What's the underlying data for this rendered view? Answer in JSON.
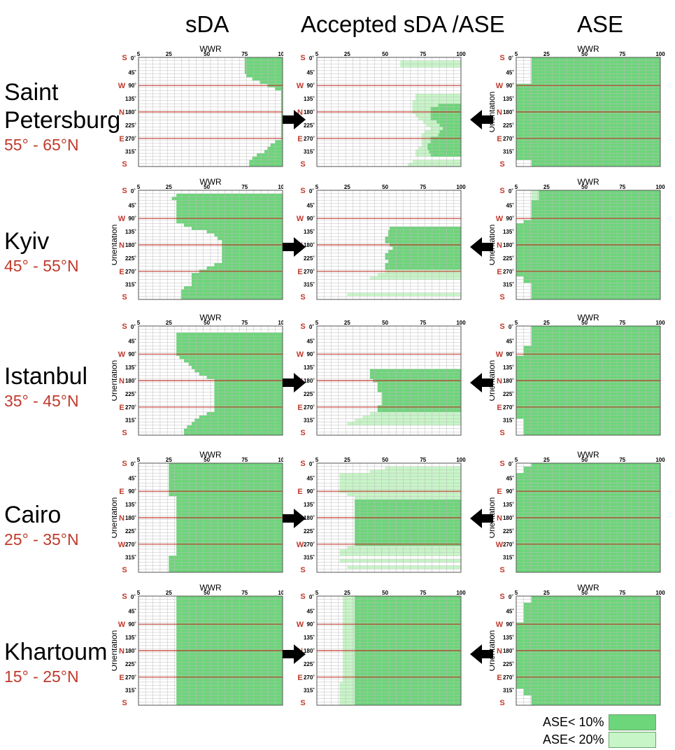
{
  "headers": [
    "sDA",
    "Accepted sDA /ASE",
    "ASE"
  ],
  "colors": {
    "ase10": "#6dd57a",
    "ase20": "#c7f5c7",
    "red": "#c0392b",
    "grid": "#bdbdbd"
  },
  "legend": [
    {
      "label": "ASE< 10%",
      "color": "#6dd57a"
    },
    {
      "label": "ASE< 20%",
      "color": "#c7f5c7"
    }
  ],
  "chart_data": {
    "type": "heatmap",
    "x_label": "WWR",
    "y_label": "Orientation",
    "x_tick_labels": [
      "5",
      "25",
      "50",
      "75",
      "100"
    ],
    "y_tick_labels": [
      "0˚",
      "45˚",
      "90˚",
      "135˚",
      "180˚",
      "225˚",
      "270˚",
      "315˚"
    ],
    "rows": [
      {
        "city": "Saint Petersburg",
        "lat": "55° - 65°N",
        "dir_labels": [
          "S",
          "W",
          "N",
          "E",
          "S"
        ],
        "panels": [
          {
            "show_wwr": true,
            "show_orientation": false,
            "boundary": [
              75,
              75,
              75,
              75,
              75,
              76,
              80,
              85,
              90,
              95,
              99,
              99,
              99,
              99,
              99,
              99,
              99,
              99,
              99,
              99,
              99,
              99,
              99,
              99,
              99,
              95,
              92,
              90,
              88,
              83,
              80,
              78,
              78
            ],
            "boundary2": null
          },
          {
            "show_wwr": false,
            "show_orientation": false,
            "boundary": [
              100,
              100,
              100,
              100,
              100,
              100,
              100,
              100,
              100,
              100,
              100,
              100,
              100,
              100,
              85,
              80,
              80,
              80,
              80,
              84,
              86,
              88,
              86,
              85,
              80,
              80,
              78,
              78,
              79,
              80,
              100,
              100,
              100
            ],
            "boundary2": [
              100,
              60,
              60,
              100,
              100,
              100,
              100,
              100,
              100,
              100,
              100,
              70,
              70,
              68,
              68,
              68,
              68,
              70,
              72,
              75,
              77,
              80,
              76,
              74,
              74,
              74,
              74,
              72,
              70,
              70,
              100,
              68,
              65
            ]
          },
          {
            "show_wwr": true,
            "show_orientation": true,
            "boundary": [
              15,
              15,
              15,
              15,
              15,
              15,
              15,
              15,
              5,
              5,
              5,
              5,
              5,
              5,
              5,
              5,
              5,
              5,
              5,
              5,
              5,
              5,
              5,
              5,
              5,
              5,
              5,
              5,
              5,
              5,
              5,
              15,
              15
            ],
            "boundary2": [
              80,
              75,
              72,
              65,
              50,
              45,
              40,
              35,
              25,
              25,
              25,
              25,
              20,
              5,
              5,
              5,
              5,
              5,
              5,
              5,
              5,
              5,
              5,
              5,
              5,
              25,
              35,
              45,
              55,
              65,
              75,
              78,
              80
            ]
          }
        ]
      },
      {
        "city": "Kyiv",
        "lat": "45° - 55°N",
        "dir_labels": [
          "S",
          "W",
          "N",
          "E",
          "S"
        ],
        "panels": [
          {
            "show_wwr": true,
            "show_orientation": true,
            "boundary": [
              100,
              30,
              27,
              30,
              30,
              30,
              30,
              30,
              30,
              30,
              35,
              40,
              50,
              55,
              57,
              60,
              60,
              60,
              60,
              60,
              60,
              60,
              55,
              50,
              45,
              40,
              40,
              40,
              40,
              35,
              33,
              33,
              33
            ],
            "boundary2": null
          },
          {
            "show_wwr": false,
            "show_orientation": false,
            "boundary": [
              100,
              100,
              100,
              100,
              100,
              100,
              100,
              100,
              100,
              100,
              100,
              53,
              52,
              52,
              50,
              50,
              53,
              55,
              52,
              50,
              50,
              52,
              50,
              50,
              100,
              100,
              100,
              100,
              100,
              100,
              100,
              100,
              100
            ],
            "boundary2": [
              100,
              100,
              100,
              100,
              100,
              100,
              100,
              100,
              100,
              100,
              100,
              58,
              55,
              55,
              55,
              55,
              55,
              56,
              55,
              55,
              55,
              55,
              55,
              55,
              50,
              45,
              40,
              100,
              100,
              100,
              100,
              25,
              100
            ]
          },
          {
            "show_wwr": true,
            "show_orientation": true,
            "boundary": [
              20,
              20,
              20,
              15,
              15,
              15,
              15,
              15,
              15,
              10,
              5,
              5,
              5,
              5,
              5,
              5,
              5,
              5,
              5,
              5,
              5,
              5,
              5,
              5,
              5,
              5,
              10,
              10,
              15,
              15,
              15,
              15,
              15
            ],
            "boundary2": [
              15,
              15,
              15,
              15,
              15,
              15,
              15,
              15,
              15,
              10,
              5,
              5,
              5,
              5,
              5,
              5,
              5,
              5,
              5,
              5,
              5,
              5,
              5,
              5,
              5,
              5,
              10,
              10,
              15,
              15,
              15,
              15,
              15
            ]
          }
        ]
      },
      {
        "city": "Istanbul",
        "lat": "35° - 45°N",
        "dir_labels": [
          "S",
          "W",
          "N",
          "E",
          "S"
        ],
        "panels": [
          {
            "show_wwr": true,
            "show_orientation": true,
            "boundary": [
              100,
              100,
              30,
              30,
              30,
              30,
              30,
              30,
              30,
              32,
              35,
              38,
              40,
              42,
              45,
              50,
              55,
              55,
              55,
              55,
              55,
              55,
              55,
              55,
              55,
              55,
              50,
              45,
              42,
              40,
              37,
              35,
              35
            ],
            "boundary2": null
          },
          {
            "show_wwr": false,
            "show_orientation": false,
            "boundary": [
              100,
              100,
              100,
              100,
              100,
              100,
              100,
              100,
              100,
              100,
              100,
              100,
              100,
              40,
              40,
              40,
              42,
              45,
              45,
              45,
              48,
              48,
              48,
              48,
              45,
              45,
              100,
              100,
              100,
              100,
              100,
              100,
              100
            ],
            "boundary2": [
              100,
              100,
              100,
              100,
              100,
              100,
              100,
              100,
              100,
              100,
              100,
              100,
              100,
              55,
              50,
              50,
              50,
              48,
              48,
              48,
              52,
              52,
              52,
              50,
              50,
              45,
              40,
              35,
              30,
              25,
              100,
              100,
              100
            ]
          },
          {
            "show_wwr": true,
            "show_orientation": true,
            "boundary": [
              15,
              15,
              15,
              15,
              15,
              15,
              10,
              10,
              10,
              5,
              5,
              5,
              5,
              5,
              5,
              5,
              5,
              5,
              5,
              5,
              5,
              5,
              5,
              5,
              5,
              5,
              5,
              5,
              10,
              10,
              10,
              10,
              10
            ],
            "boundary2": [
              15,
              15,
              15,
              15,
              15,
              15,
              15,
              15,
              15,
              10,
              5,
              5,
              5,
              5,
              5,
              5,
              5,
              5,
              5,
              5,
              5,
              5,
              5,
              5,
              5,
              5,
              5,
              5,
              10,
              15,
              15,
              15,
              15
            ]
          }
        ]
      },
      {
        "city": "Cairo",
        "lat": "25° - 35°N",
        "dir_labels": [
          "S",
          "E",
          "N",
          "W",
          "S"
        ],
        "panels": [
          {
            "show_wwr": true,
            "show_orientation": true,
            "boundary": [
              25,
              25,
              25,
              25,
              25,
              25,
              25,
              25,
              25,
              25,
              30,
              30,
              30,
              30,
              30,
              30,
              30,
              30,
              30,
              30,
              30,
              30,
              30,
              30,
              30,
              30,
              30,
              30,
              25,
              25,
              25,
              25,
              25
            ],
            "boundary2": null
          },
          {
            "show_wwr": false,
            "show_orientation": false,
            "boundary": [
              100,
              100,
              100,
              100,
              100,
              100,
              100,
              100,
              100,
              100,
              100,
              30,
              30,
              30,
              30,
              30,
              30,
              30,
              30,
              30,
              30,
              30,
              30,
              30,
              30,
              100,
              100,
              100,
              100,
              100,
              100,
              100,
              100
            ],
            "boundary2": [
              100,
              50,
              40,
              20,
              20,
              20,
              20,
              20,
              20,
              25,
              30,
              30,
              30,
              30,
              30,
              30,
              30,
              30,
              30,
              30,
              30,
              30,
              30,
              30,
              30,
              25,
              20,
              20,
              100,
              20,
              100,
              25,
              100
            ]
          },
          {
            "show_wwr": true,
            "show_orientation": true,
            "boundary": [
              15,
              10,
              10,
              5,
              5,
              5,
              5,
              5,
              5,
              5,
              5,
              5,
              5,
              5,
              5,
              5,
              5,
              5,
              5,
              5,
              5,
              5,
              5,
              5,
              5,
              5,
              5,
              5,
              5,
              5,
              5,
              5,
              5
            ],
            "boundary2": [
              20,
              20,
              20,
              10,
              10,
              5,
              5,
              5,
              5,
              5,
              5,
              5,
              5,
              5,
              5,
              5,
              5,
              5,
              5,
              5,
              5,
              5,
              5,
              5,
              5,
              5,
              5,
              5,
              5,
              5,
              5,
              5,
              5
            ]
          }
        ]
      },
      {
        "city": "Khartoum",
        "lat": "15° - 25°N",
        "dir_labels": [
          "S",
          "W",
          "N",
          "E",
          "S"
        ],
        "panels": [
          {
            "show_wwr": true,
            "show_orientation": true,
            "boundary": [
              30,
              30,
              30,
              30,
              30,
              30,
              30,
              30,
              30,
              30,
              30,
              30,
              30,
              30,
              30,
              30,
              30,
              30,
              30,
              30,
              30,
              30,
              30,
              30,
              30,
              30,
              30,
              30,
              30,
              30,
              30,
              30,
              30
            ],
            "boundary2": null
          },
          {
            "show_wwr": false,
            "show_orientation": false,
            "boundary": [
              30,
              30,
              30,
              30,
              30,
              30,
              30,
              30,
              30,
              30,
              30,
              30,
              30,
              30,
              30,
              30,
              30,
              30,
              30,
              30,
              30,
              30,
              30,
              30,
              30,
              30,
              30,
              30,
              30,
              30,
              30,
              30,
              30
            ],
            "boundary2": [
              22,
              22,
              22,
              22,
              22,
              22,
              22,
              22,
              22,
              22,
              22,
              22,
              22,
              22,
              22,
              22,
              22,
              22,
              22,
              22,
              22,
              22,
              22,
              22,
              22,
              22,
              20,
              20,
              20,
              20,
              20,
              20,
              20
            ]
          },
          {
            "show_wwr": true,
            "show_orientation": true,
            "boundary": [
              15,
              15,
              10,
              10,
              10,
              10,
              10,
              10,
              5,
              5,
              5,
              5,
              5,
              5,
              5,
              5,
              5,
              5,
              5,
              5,
              5,
              5,
              5,
              5,
              5,
              5,
              5,
              5,
              10,
              10,
              15,
              15,
              15
            ],
            "boundary2": [
              20,
              20,
              15,
              15,
              15,
              15,
              15,
              15,
              10,
              5,
              5,
              5,
              5,
              5,
              5,
              5,
              5,
              5,
              5,
              5,
              5,
              5,
              5,
              5,
              5,
              5,
              5,
              10,
              15,
              15,
              20,
              20,
              20
            ]
          }
        ]
      }
    ]
  }
}
